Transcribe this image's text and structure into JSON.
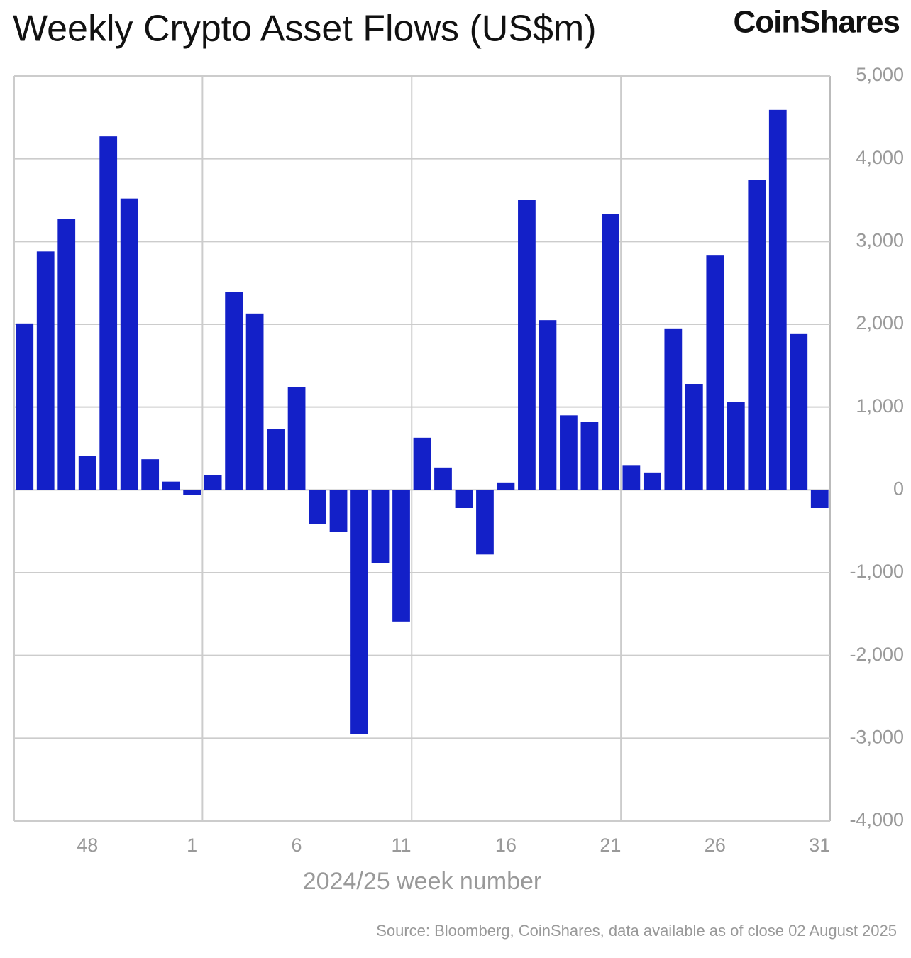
{
  "chart_data": {
    "type": "bar",
    "title": "Weekly Crypto Asset Flows (US$m)",
    "brand": "CoinShares",
    "x_label": "2024/25 week number",
    "source": "Source: Bloomberg, CoinShares, data available as of close 02 August 2025",
    "categories": [
      null,
      null,
      null,
      "48",
      null,
      null,
      null,
      null,
      "1",
      null,
      null,
      null,
      null,
      "6",
      null,
      null,
      null,
      null,
      "11",
      null,
      null,
      null,
      null,
      "16",
      null,
      null,
      null,
      null,
      "21",
      null,
      null,
      null,
      null,
      "26",
      null,
      null,
      null,
      null,
      "31"
    ],
    "values": [
      2010,
      2880,
      3270,
      410,
      4270,
      3520,
      370,
      100,
      -60,
      180,
      2390,
      2130,
      740,
      1240,
      -410,
      -510,
      -2950,
      -880,
      -1590,
      630,
      270,
      -220,
      -780,
      90,
      3500,
      2050,
      900,
      820,
      3330,
      300,
      210,
      1950,
      1280,
      2830,
      1060,
      3740,
      4590,
      1890,
      -220
    ],
    "color": "#1320c8",
    "ylim": [
      -4000,
      5000
    ],
    "yticks": [
      {
        "value": -4000,
        "label": "-4,000"
      },
      {
        "value": -3000,
        "label": "-3,000"
      },
      {
        "value": -2000,
        "label": "-2,000"
      },
      {
        "value": -1000,
        "label": "-1,000"
      },
      0,
      {
        "value": 1000,
        "label": "1,000"
      },
      {
        "value": 2000,
        "label": "2,000"
      },
      {
        "value": 3000,
        "label": "3,000"
      },
      {
        "value": 4000,
        "label": "4,000"
      },
      {
        "value": 5000,
        "label": "5,000"
      }
    ],
    "grid": true
  }
}
